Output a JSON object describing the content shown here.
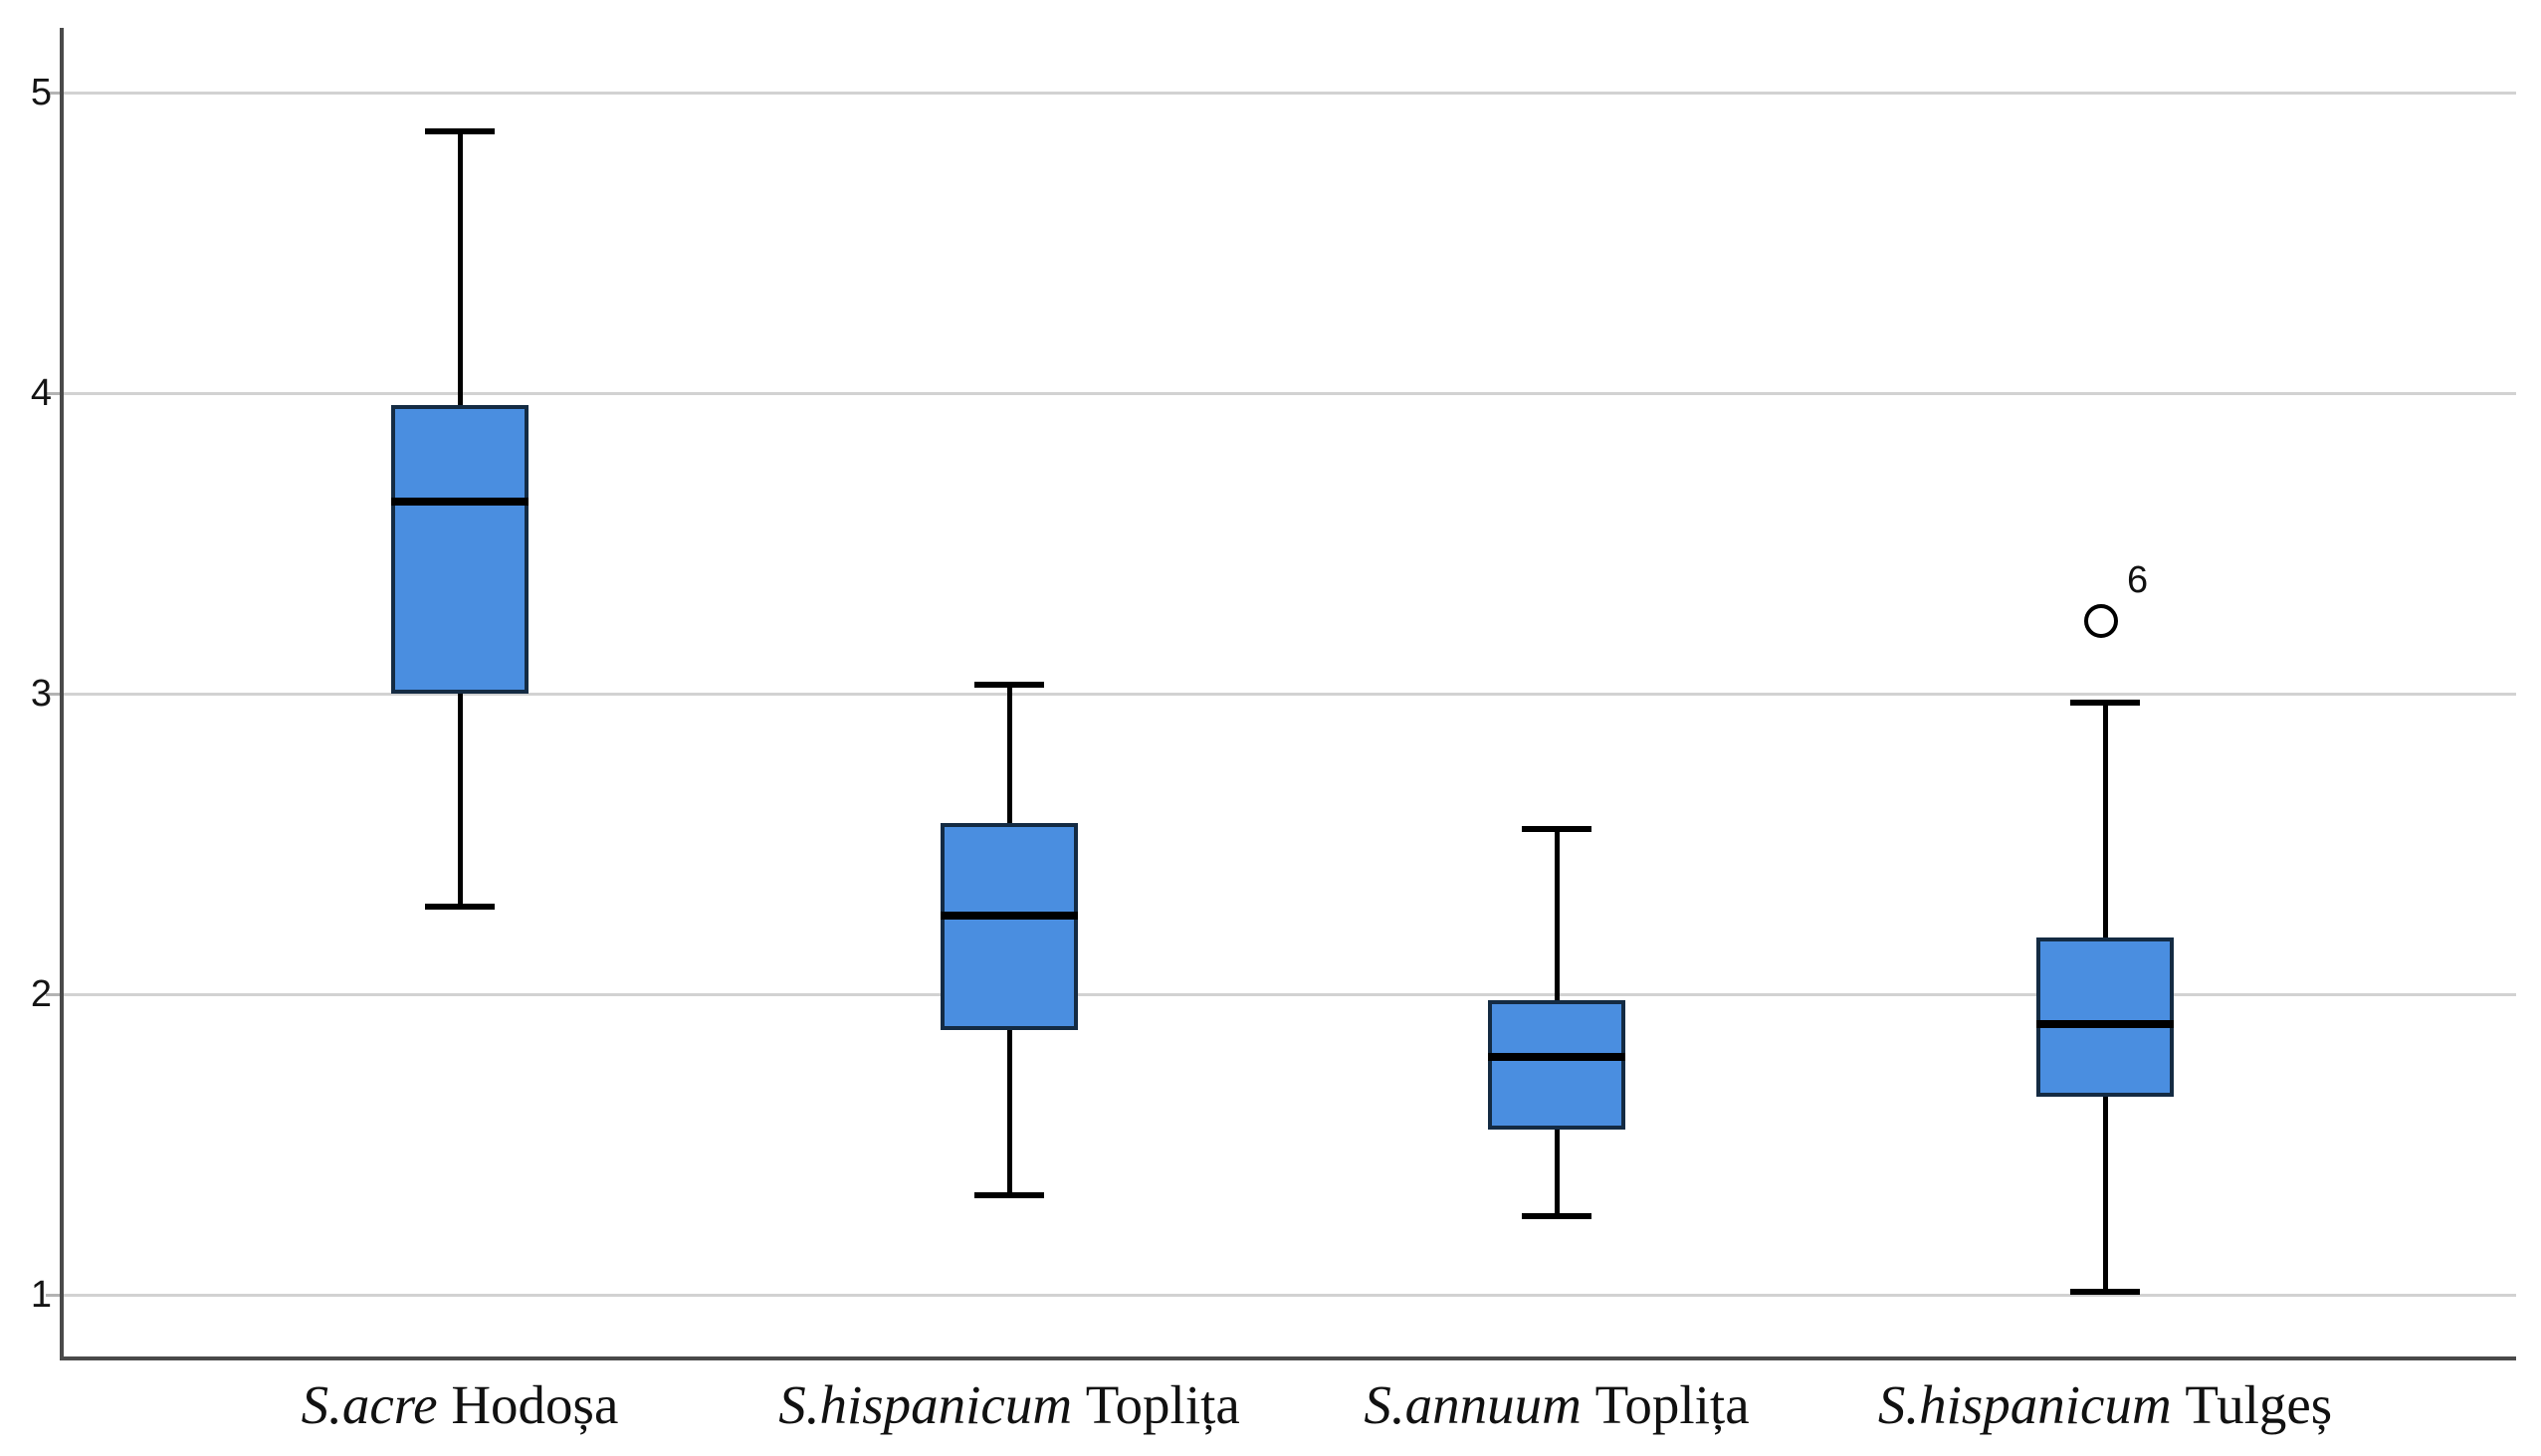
{
  "chart_data": {
    "type": "box",
    "title": "",
    "xlabel": "",
    "ylabel": "",
    "ylim": [
      0.78,
      5.2
    ],
    "yticks": [
      "1",
      "2",
      "3",
      "4",
      "5"
    ],
    "grid": "horizontal",
    "legend": "none",
    "categories": [
      "S.acre Hodoșa",
      "S.hispanicum Toplița",
      "S.annuum Toplița",
      "S.hispanicum Tulgeș"
    ],
    "series": [
      {
        "name": "S.acre Hodoșa",
        "species": "S.acre",
        "site": "Hodoșa",
        "whisker_low": 2.29,
        "q1": 3.0,
        "median": 3.64,
        "q3": 3.96,
        "whisker_high": 4.87,
        "outliers": []
      },
      {
        "name": "S.hispanicum Toplița",
        "species": "S.hispanicum",
        "site": "Toplița",
        "whisker_low": 1.33,
        "q1": 1.88,
        "median": 2.26,
        "q3": 2.57,
        "whisker_high": 3.03,
        "outliers": []
      },
      {
        "name": "S.annuum Toplița",
        "species": "S.annuum",
        "site": "Toplița",
        "whisker_low": 1.26,
        "q1": 1.55,
        "median": 1.79,
        "q3": 1.98,
        "whisker_high": 2.55,
        "outliers": []
      },
      {
        "name": "S.hispanicum Tulgeș",
        "species": "S.hispanicum",
        "site": "Tulgeș",
        "whisker_low": 1.01,
        "q1": 1.66,
        "median": 1.9,
        "q3": 2.19,
        "whisker_high": 2.97,
        "outliers": [
          {
            "value": 3.23,
            "label": "6"
          }
        ]
      }
    ],
    "colors": {
      "box_fill": "#4A8EE0",
      "box_border": "#142B43",
      "median": "#000000",
      "whisker": "#000000",
      "gridline": "#D2D2D2",
      "axis": "#4A4A4A",
      "background": "#FFFFFF",
      "outlier_stroke": "#000000"
    }
  }
}
